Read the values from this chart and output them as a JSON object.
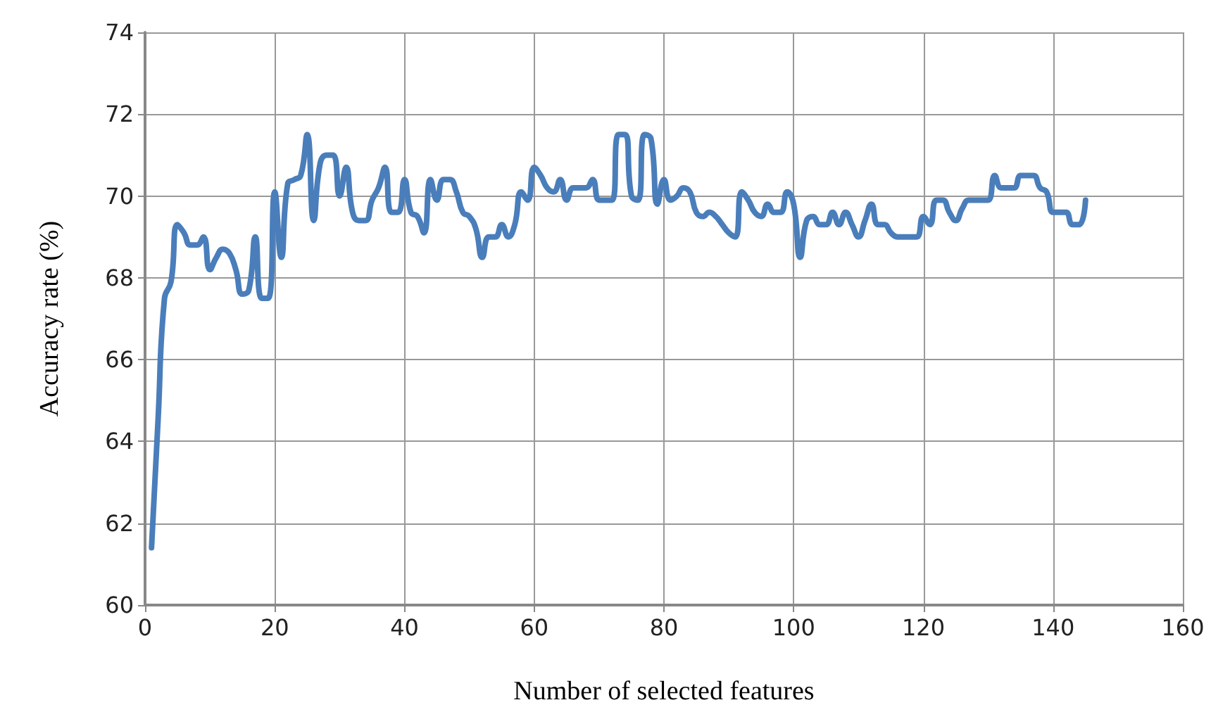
{
  "chart_data": {
    "type": "line",
    "xlabel": "Number of selected features",
    "ylabel": "Accuracy rate (%)",
    "x": [
      1,
      2,
      3,
      4,
      5,
      6,
      7,
      8,
      9,
      10,
      11,
      12,
      13,
      14,
      15,
      16,
      17,
      18,
      19,
      20,
      21,
      22,
      23,
      24,
      25,
      26,
      27,
      28,
      29,
      30,
      31,
      32,
      33,
      34,
      35,
      36,
      37,
      38,
      39,
      40,
      41,
      42,
      43,
      44,
      45,
      46,
      47,
      48,
      49,
      50,
      51,
      52,
      53,
      54,
      55,
      56,
      57,
      58,
      59,
      60,
      61,
      62,
      63,
      64,
      65,
      66,
      67,
      68,
      69,
      70,
      71,
      72,
      73,
      74,
      75,
      76,
      77,
      78,
      79,
      80,
      81,
      82,
      83,
      84,
      85,
      86,
      87,
      88,
      89,
      90,
      91,
      92,
      93,
      94,
      95,
      96,
      97,
      98,
      99,
      100,
      101,
      102,
      103,
      104,
      105,
      106,
      107,
      108,
      109,
      110,
      111,
      112,
      113,
      114,
      115,
      116,
      117,
      118,
      119,
      120,
      121,
      122,
      123,
      124,
      125,
      126,
      127,
      128,
      129,
      130,
      131,
      132,
      133,
      134,
      135,
      136,
      137,
      138,
      139,
      140,
      141,
      142,
      143,
      144,
      145
    ],
    "series": [
      {
        "color": "#4a7ebb",
        "values": [
          61.4,
          64.5,
          67.5,
          67.9,
          69.3,
          69.1,
          68.8,
          68.8,
          69.0,
          68.2,
          68.5,
          68.7,
          68.6,
          68.2,
          67.6,
          67.7,
          69.0,
          67.5,
          67.5,
          70.1,
          68.5,
          70.3,
          70.4,
          70.5,
          71.5,
          69.4,
          70.8,
          71.0,
          71.0,
          70.0,
          70.7,
          69.6,
          69.4,
          69.4,
          69.9,
          70.2,
          70.7,
          69.6,
          69.6,
          70.4,
          69.6,
          69.5,
          69.1,
          70.4,
          69.9,
          70.4,
          70.4,
          70.1,
          69.6,
          69.5,
          69.2,
          68.5,
          69.0,
          69.0,
          69.3,
          69.0,
          69.3,
          70.1,
          69.9,
          70.7,
          70.5,
          70.2,
          70.1,
          70.4,
          69.9,
          70.2,
          70.2,
          70.2,
          70.4,
          69.9,
          69.9,
          69.9,
          71.5,
          71.5,
          70.0,
          69.9,
          71.5,
          71.4,
          69.8,
          70.4,
          69.9,
          70.0,
          70.2,
          70.1,
          69.6,
          69.5,
          69.6,
          69.5,
          69.3,
          69.1,
          69.0,
          70.1,
          69.9,
          69.6,
          69.5,
          69.8,
          69.6,
          69.6,
          70.1,
          69.8,
          68.5,
          69.4,
          69.5,
          69.3,
          69.3,
          69.6,
          69.3,
          69.6,
          69.3,
          69.0,
          69.4,
          69.8,
          69.3,
          69.3,
          69.1,
          69.0,
          69.0,
          69.0,
          69.0,
          69.5,
          69.3,
          69.9,
          69.9,
          69.6,
          69.4,
          69.7,
          69.9,
          69.9,
          69.9,
          69.9,
          70.5,
          70.2,
          70.2,
          70.2,
          70.5,
          70.5,
          70.5,
          70.2,
          70.1,
          69.6,
          69.6,
          69.6,
          69.3,
          69.3,
          69.9
        ]
      }
    ],
    "xlim": [
      0,
      160
    ],
    "xticks": [
      0,
      20,
      40,
      60,
      80,
      100,
      120,
      140,
      160
    ],
    "ylim": [
      60,
      74
    ],
    "yticks": [
      60,
      62,
      64,
      66,
      68,
      70,
      72,
      74
    ],
    "grid": true,
    "marker": "none",
    "line_style": "solid"
  }
}
